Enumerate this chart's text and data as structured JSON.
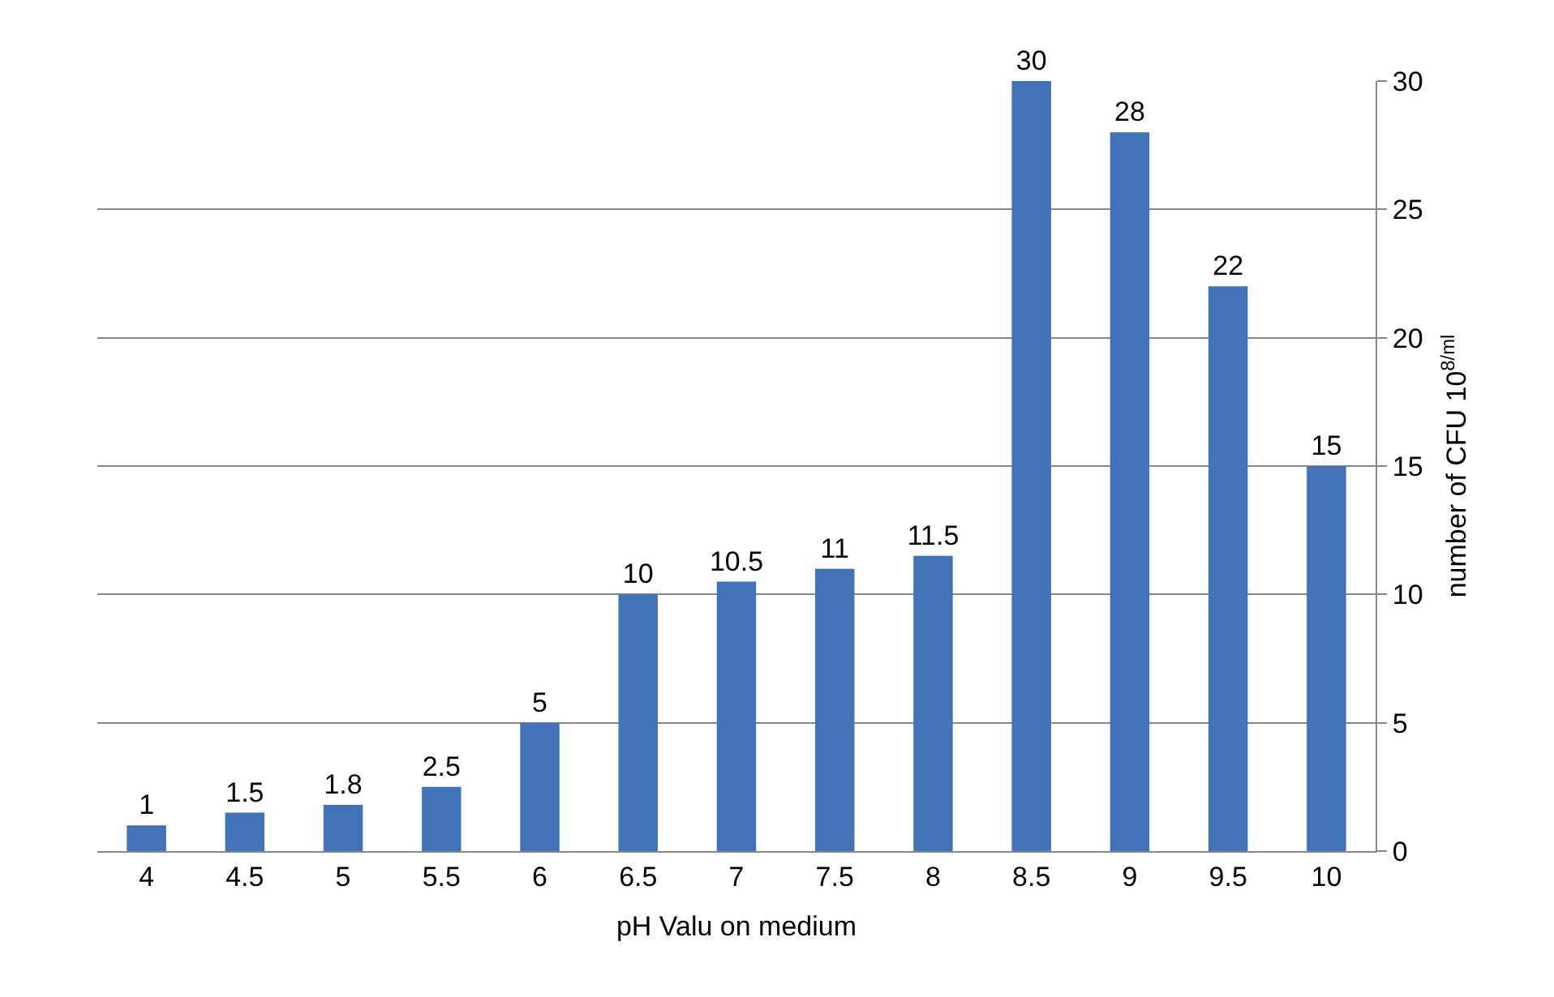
{
  "chart_data": {
    "type": "bar",
    "xlabel": "pH Valu on medium",
    "ylabel": "number of CFU 10$^{8/ml}$",
    "categories": [
      "4",
      "4.5",
      "5",
      "5.5",
      "6",
      "6.5",
      "7",
      "7.5",
      "8",
      "8.5",
      "9",
      "9.5",
      "10"
    ],
    "values": [
      1,
      1.5,
      1.8,
      2.5,
      5,
      10,
      10.5,
      11,
      11.5,
      30,
      28,
      22,
      15
    ],
    "color": "#4273b8",
    "ylim": [
      0,
      30
    ],
    "yticks": [
      0,
      5,
      10,
      15,
      20,
      25,
      30
    ],
    "grid": "y",
    "data_labels": true
  }
}
